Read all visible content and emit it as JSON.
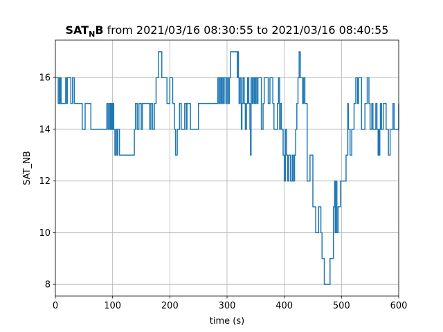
{
  "chart_data": {
    "type": "line",
    "title_main": "SAT",
    "title_sub": "N",
    "title_b": "B",
    "title_rest": " from 2021/03/16 08:30:55 to 2021/03/16 08:40:55",
    "xlabel": "time (s)",
    "ylabel": "SAT_NB",
    "xlim": [
      0,
      600
    ],
    "ylim": [
      7.55,
      17.45
    ],
    "xticks": [
      0,
      100,
      200,
      300,
      400,
      500,
      600
    ],
    "yticks": [
      8,
      10,
      12,
      14,
      16
    ],
    "grid": true,
    "color": "#1f77b4",
    "step": true,
    "x": [
      0,
      5,
      7,
      8,
      9,
      10,
      18,
      20,
      21,
      27,
      30,
      33,
      47,
      52,
      62,
      90,
      92,
      94,
      96,
      97,
      98,
      99,
      100,
      101,
      102,
      104,
      106,
      108,
      109,
      112,
      138,
      140,
      143,
      146,
      150,
      152,
      165,
      167,
      170,
      173,
      176,
      180,
      186,
      195,
      200,
      205,
      208,
      210,
      213,
      217,
      220,
      226,
      229,
      230,
      232,
      236,
      250,
      280,
      284,
      286,
      288,
      290,
      291,
      293,
      295,
      298,
      300,
      302,
      304,
      306,
      318,
      319,
      320,
      321,
      323,
      325,
      326,
      328,
      330,
      332,
      334,
      336,
      338,
      340,
      341,
      342,
      344,
      346,
      348,
      350,
      352,
      354,
      360,
      363,
      365,
      372,
      375,
      380,
      382,
      388,
      390,
      392,
      393,
      395,
      398,
      400,
      402,
      404,
      406,
      408,
      411,
      414,
      416,
      418,
      420,
      422,
      424,
      426,
      428,
      432,
      434,
      436,
      440,
      445,
      450,
      455,
      460,
      464,
      466,
      470,
      480,
      486,
      488,
      489,
      490,
      491,
      492,
      494,
      498,
      508,
      511,
      512,
      515,
      518,
      522,
      525,
      528,
      530,
      535,
      541,
      545,
      548,
      550,
      553,
      555,
      560,
      562,
      564,
      565,
      566,
      567,
      568,
      570,
      573,
      578,
      582,
      585,
      590,
      592,
      600
    ],
    "values": [
      16,
      15,
      16,
      15,
      16,
      15,
      16,
      15,
      16,
      15,
      16,
      15,
      14,
      15,
      14,
      15,
      14,
      15,
      14,
      15,
      14,
      15,
      14,
      15,
      14,
      13,
      14,
      13,
      14,
      13,
      14,
      15,
      14,
      15,
      14,
      15,
      14,
      15,
      14,
      15,
      16,
      17,
      16,
      15,
      16,
      15,
      14,
      13,
      14,
      15,
      14,
      15,
      14,
      15,
      15,
      14,
      15,
      15,
      16,
      15,
      16,
      15,
      16,
      15,
      16,
      15,
      16,
      15,
      16,
      17,
      16,
      17,
      16,
      15,
      16,
      14,
      15,
      16,
      15,
      14,
      15,
      16,
      15,
      14,
      13,
      16,
      15,
      16,
      15,
      16,
      15,
      16,
      14,
      15,
      16,
      15,
      16,
      15,
      14,
      15,
      16,
      14,
      15,
      14,
      13,
      12,
      14,
      13,
      12,
      13,
      12,
      13,
      12,
      13,
      14,
      15,
      16,
      17,
      16,
      15,
      16,
      15,
      12,
      13,
      11,
      10,
      11,
      10,
      9,
      8,
      9,
      11,
      12,
      10,
      11,
      12,
      10,
      11,
      12,
      13,
      15,
      14,
      13,
      14,
      15,
      16,
      15,
      16,
      14,
      15,
      16,
      15,
      14,
      15,
      14,
      15,
      14,
      13,
      14,
      13,
      14,
      15,
      14,
      15,
      14,
      13,
      14,
      15,
      14,
      15
    ]
  }
}
